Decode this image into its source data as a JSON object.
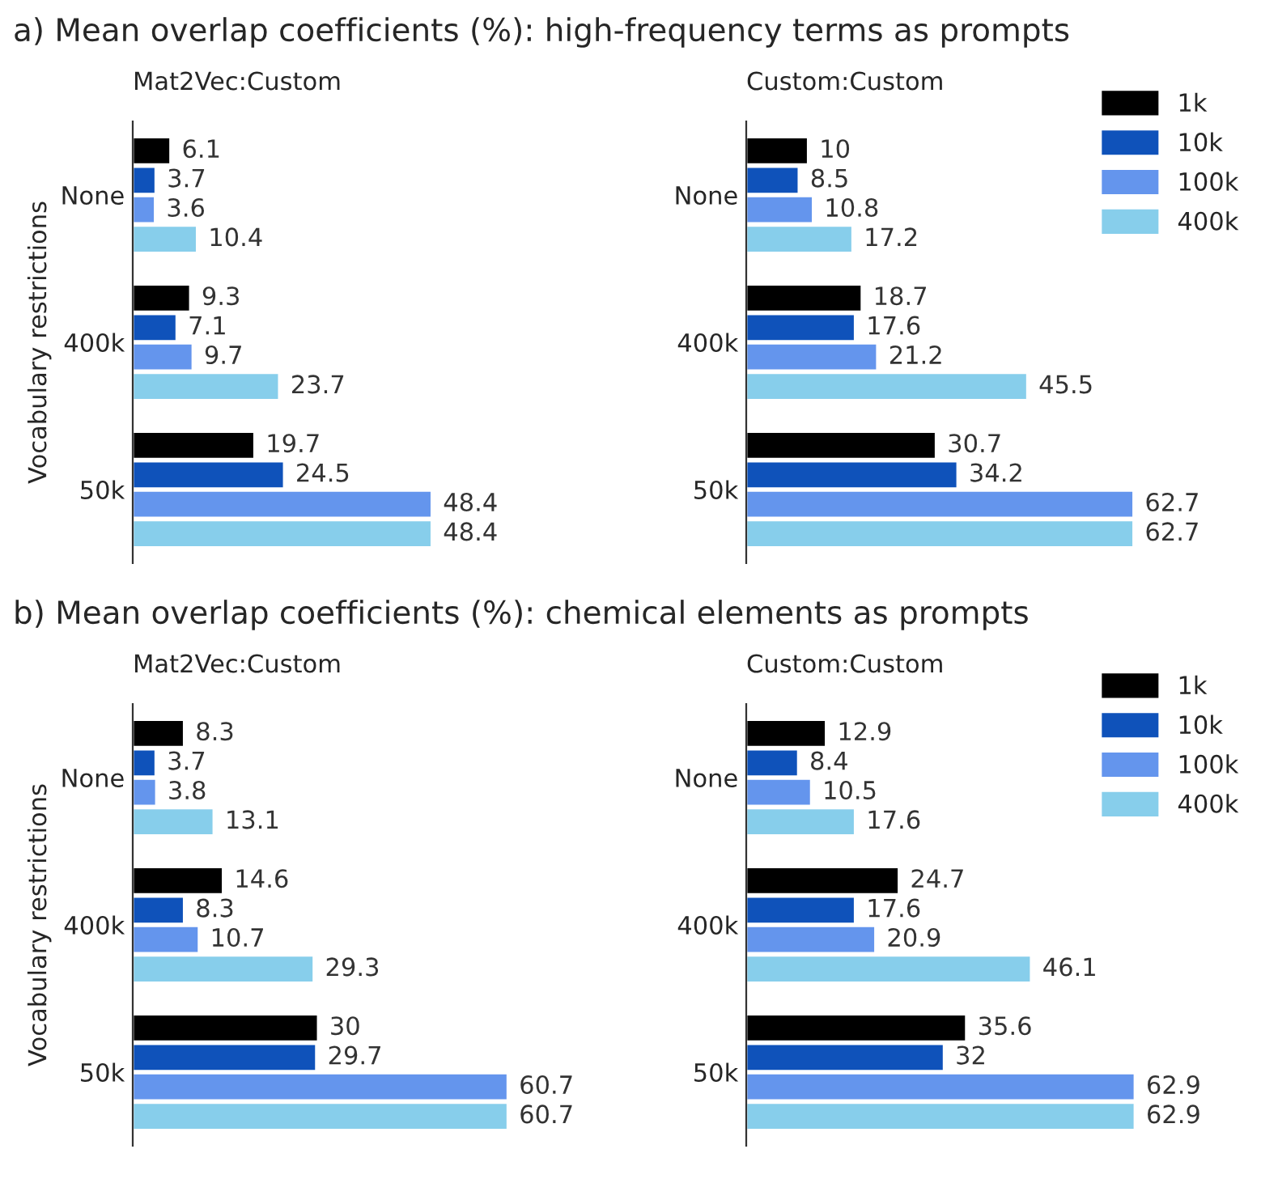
{
  "chart_data": [
    {
      "type": "bar",
      "orientation": "horizontal",
      "title": "a) Mean overlap coefficients (%): high-frequency terms as prompts",
      "subtitle": "Mat2Vec:Custom",
      "ylabel": "Vocabulary restrictions",
      "categories": [
        "None",
        "400k",
        "50k"
      ],
      "data_labels": true,
      "tick_labels": "y",
      "series": [
        {
          "color": "#000000",
          "values": [
            6.1,
            9.3,
            19.7
          ]
        },
        {
          "color": "#0f52ba",
          "values": [
            3.7,
            7.1,
            24.5
          ]
        },
        {
          "color": "#6495ed",
          "values": [
            3.6,
            9.7,
            48.4
          ]
        },
        {
          "color": "#87ceeb",
          "values": [
            10.4,
            23.7,
            48.4
          ]
        }
      ]
    },
    {
      "type": "bar",
      "orientation": "horizontal",
      "subtitle": "Custom:Custom",
      "categories": [
        "None",
        "400k",
        "50k"
      ],
      "data_labels": true,
      "tick_labels": "y",
      "legend": "top right",
      "series": [
        {
          "name": "1k",
          "color": "#000000",
          "values": [
            10,
            18.7,
            30.7
          ]
        },
        {
          "name": "10k",
          "color": "#0f52ba",
          "values": [
            8.5,
            17.6,
            34.2
          ]
        },
        {
          "name": "100k",
          "color": "#6495ed",
          "values": [
            10.8,
            21.2,
            62.7
          ]
        },
        {
          "name": "400k",
          "color": "#87ceeb",
          "values": [
            17.2,
            45.5,
            62.7
          ]
        }
      ]
    },
    {
      "type": "bar",
      "orientation": "horizontal",
      "title": "b) Mean overlap coefficients (%): chemical elements as prompts",
      "subtitle": "Mat2Vec:Custom",
      "ylabel": "Vocabulary restrictions",
      "categories": [
        "None",
        "400k",
        "50k"
      ],
      "data_labels": true,
      "tick_labels": "y",
      "series": [
        {
          "color": "#000000",
          "values": [
            8.3,
            14.6,
            30
          ]
        },
        {
          "color": "#0f52ba",
          "values": [
            3.7,
            8.3,
            29.7
          ]
        },
        {
          "color": "#6495ed",
          "values": [
            3.8,
            10.7,
            60.7
          ]
        },
        {
          "color": "#87ceeb",
          "values": [
            13.1,
            29.3,
            60.7
          ]
        }
      ]
    },
    {
      "type": "bar",
      "orientation": "horizontal",
      "subtitle": "Custom:Custom",
      "categories": [
        "None",
        "400k",
        "50k"
      ],
      "data_labels": true,
      "tick_labels": "y",
      "legend": "top right",
      "series": [
        {
          "name": "1k",
          "color": "#000000",
          "values": [
            12.9,
            24.7,
            35.6
          ]
        },
        {
          "name": "10k",
          "color": "#0f52ba",
          "values": [
            8.4,
            17.6,
            32
          ]
        },
        {
          "name": "100k",
          "color": "#6495ed",
          "values": [
            10.5,
            20.9,
            62.9
          ]
        },
        {
          "name": "400k",
          "color": "#87ceeb",
          "values": [
            17.6,
            46.1,
            62.9
          ]
        }
      ]
    }
  ]
}
